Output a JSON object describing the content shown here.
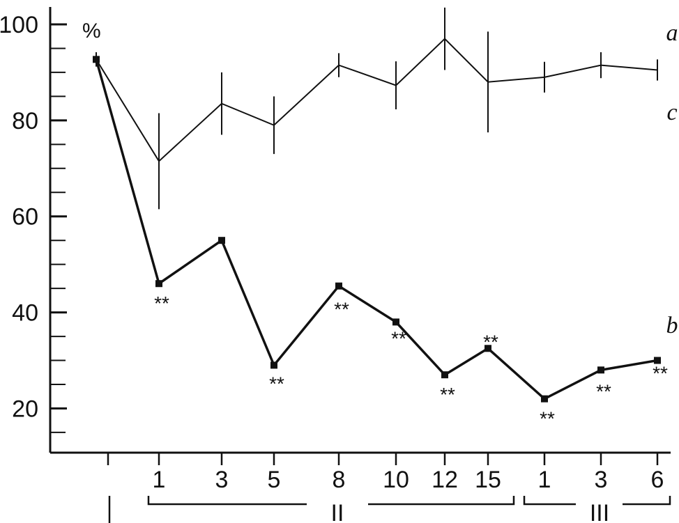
{
  "chart_data": {
    "type": "line",
    "y_unit": "%",
    "ylim": [
      12,
      104
    ],
    "y_ticks": [
      100,
      80,
      60,
      40,
      20
    ],
    "x_tick_labels": [
      "1",
      "3",
      "5",
      "8",
      "10",
      "12",
      "15",
      "1",
      "3",
      "6"
    ],
    "periods": [
      {
        "label": "I"
      },
      {
        "label": "II"
      },
      {
        "label": "III"
      }
    ],
    "series": [
      {
        "name": "a",
        "values": [
          92.7,
          71.5,
          83.5,
          79,
          91.5,
          87.3,
          97,
          88,
          89,
          91.5,
          90.5
        ],
        "errors": [
          1.5,
          10,
          6.5,
          6,
          2.5,
          5,
          6.5,
          10.5,
          3.2,
          2.7,
          2.2
        ]
      },
      {
        "name": "b",
        "values": [
          92.7,
          46,
          55,
          29,
          45.5,
          38,
          27,
          32.5,
          22,
          28,
          30
        ],
        "significance": [
          "",
          "**",
          "",
          "**",
          "**",
          "**",
          "**",
          "**",
          "**",
          "**",
          "**"
        ]
      }
    ],
    "extra_labels": [
      "c"
    ]
  }
}
